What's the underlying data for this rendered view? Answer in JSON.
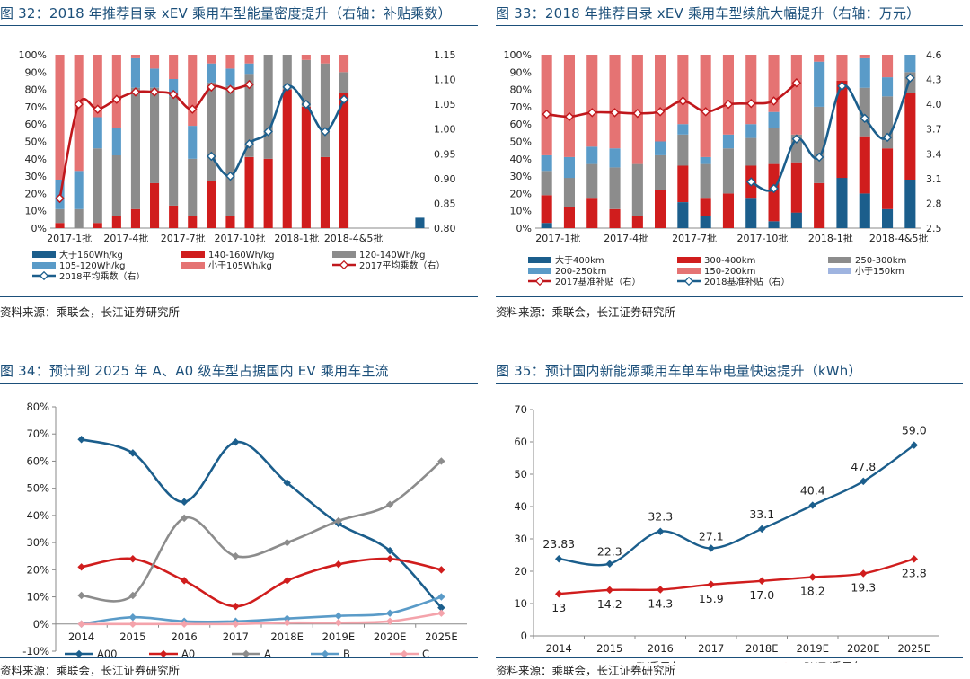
{
  "source": "资料来源：乘联会，长江证券研究所",
  "chart_data": [
    {
      "id": "fig32",
      "type": "bar",
      "title": "图 32：2018 年推荐目录 xEV 乘用车型能量密度提升（右轴：补贴乘数）",
      "xtick_labels": [
        "2017-1批",
        "2017-4批",
        "2017-7批",
        "2017-10批",
        "2018-1批",
        "2018-4&5批"
      ],
      "y_ticks": [
        "0%",
        "10%",
        "20%",
        "30%",
        "40%",
        "50%",
        "60%",
        "70%",
        "80%",
        "90%",
        "100%"
      ],
      "y2_ticks": [
        "0.80",
        "0.85",
        "0.90",
        "0.95",
        "1.00",
        "1.05",
        "1.10",
        "1.15"
      ],
      "ylim": [
        0,
        100
      ],
      "y2lim": [
        0.8,
        1.15
      ],
      "stack_series": [
        {
          "name": "大于160Wh/kg",
          "color": "#1b5e8c",
          "values": [
            0,
            0,
            0,
            0,
            0,
            0,
            0,
            0,
            0,
            0,
            0,
            0,
            0,
            0,
            0,
            0,
            0,
            0,
            0,
            6
          ]
        },
        {
          "name": "140-160Wh/kg",
          "color": "#d01d1d",
          "values": [
            3,
            0,
            3,
            7,
            11,
            26,
            13,
            7,
            27,
            7,
            41,
            40,
            80,
            70,
            41,
            78,
            0,
            0,
            0,
            0
          ]
        },
        {
          "name": "120-140Wh/kg",
          "color": "#8c8c8c",
          "values": [
            8,
            11,
            43,
            35,
            70,
            55,
            63,
            33,
            57,
            75,
            48,
            60,
            20,
            27,
            54,
            12,
            0,
            0,
            0,
            0
          ]
        },
        {
          "name": "105-120Wh/kg",
          "color": "#5a9bc8",
          "values": [
            17,
            22,
            18,
            16,
            17,
            11,
            10,
            19,
            11,
            10,
            6,
            0,
            0,
            0,
            0,
            0,
            0,
            0,
            0,
            0
          ]
        },
        {
          "name": "小于105Wh/kg",
          "color": "#e57373",
          "values": [
            72,
            67,
            36,
            42,
            2,
            8,
            14,
            41,
            5,
            8,
            5,
            0,
            0,
            3,
            5,
            10,
            0,
            0,
            0,
            0
          ]
        }
      ],
      "line_series": [
        {
          "name": "2018平均乘数（右）",
          "color": "#1b5e8c",
          "values": [
            0.86,
            null,
            null,
            null,
            null,
            null,
            null,
            null,
            0.945,
            0.905,
            0.97,
            0.995,
            1.085,
            1.05,
            0.995,
            1.06
          ]
        },
        {
          "name": "2017平均乘数（右）",
          "color": "#c0171c",
          "values": [
            0.86,
            1.05,
            1.04,
            1.06,
            1.075,
            1.075,
            1.07,
            1.04,
            1.085,
            1.08,
            1.09,
            null,
            null,
            null,
            null,
            null
          ]
        }
      ]
    },
    {
      "id": "fig33",
      "type": "bar",
      "title": "图 33：2018 年推荐目录 xEV 乘用车型续航大幅提升（右轴：万元）",
      "xtick_labels": [
        "2017-1批",
        "2017-4批",
        "2017-7批",
        "2017-10批",
        "2018-1批",
        "2018-4&5批"
      ],
      "y_ticks": [
        "0%",
        "10%",
        "20%",
        "30%",
        "40%",
        "50%",
        "60%",
        "70%",
        "80%",
        "90%",
        "100%"
      ],
      "y2_ticks": [
        "2.5",
        "2.8",
        "3.1",
        "3.4",
        "3.7",
        "4.0",
        "4.3",
        "4.6"
      ],
      "ylim": [
        0,
        100
      ],
      "y2lim": [
        2.5,
        4.6
      ],
      "stack_series": [
        {
          "name": "大于400km",
          "color": "#1b5e8c",
          "values": [
            3,
            0,
            0,
            0,
            0,
            0,
            15,
            7,
            0,
            17,
            4,
            9,
            0,
            29,
            20,
            11,
            28
          ]
        },
        {
          "name": "300-400km",
          "color": "#d01d1d",
          "values": [
            16,
            12,
            17,
            11,
            7,
            22,
            21,
            10,
            20,
            19,
            33,
            29,
            26,
            56,
            33,
            35,
            50
          ]
        },
        {
          "name": "250-300km",
          "color": "#8c8c8c",
          "values": [
            14,
            17,
            20,
            24,
            30,
            20,
            18,
            20,
            26,
            16,
            21,
            16,
            44,
            0,
            28,
            30,
            12
          ]
        },
        {
          "name": "200-250km",
          "color": "#5a9bc8",
          "values": [
            9,
            12,
            10,
            11,
            0,
            8,
            6,
            4,
            8,
            8,
            9,
            0,
            26,
            0,
            17,
            11,
            10
          ]
        },
        {
          "name": "150-200km",
          "color": "#e57373",
          "values": [
            58,
            59,
            53,
            54,
            63,
            50,
            40,
            59,
            46,
            40,
            33,
            46,
            4,
            15,
            2,
            13,
            0
          ]
        },
        {
          "name": "小于150km",
          "color": "#9fb4e0",
          "values": [
            0,
            0,
            0,
            0,
            0,
            0,
            0,
            0,
            0,
            0,
            0,
            0,
            0,
            0,
            0,
            0,
            0
          ]
        }
      ],
      "line_series": [
        {
          "name": "2017基准补贴（右）",
          "color": "#c0171c",
          "values": [
            3.88,
            3.85,
            3.9,
            3.9,
            3.89,
            3.91,
            4.04,
            3.91,
            4.0,
            4.01,
            4.04,
            4.26,
            null,
            null,
            null,
            null,
            null
          ]
        },
        {
          "name": "2018基准补贴（右）",
          "color": "#1b5e8c",
          "values": [
            null,
            null,
            null,
            null,
            null,
            null,
            null,
            null,
            null,
            3.06,
            2.98,
            3.58,
            3.36,
            4.22,
            3.83,
            3.6,
            4.32
          ]
        }
      ]
    },
    {
      "id": "fig34",
      "type": "line",
      "title": "图 34：预计到 2025 年 A、A0 级车型占据国内 EV 乘用车主流",
      "categories": [
        "2014",
        "2015",
        "2016",
        "2017",
        "2018E",
        "2019E",
        "2020E",
        "2025E"
      ],
      "y_ticks": [
        "-10%",
        "0%",
        "10%",
        "20%",
        "30%",
        "40%",
        "50%",
        "60%",
        "70%",
        "80%"
      ],
      "ylim": [
        -10,
        80
      ],
      "series": [
        {
          "name": "A00",
          "color": "#1b5e8c",
          "values": [
            68,
            63,
            45,
            67,
            52,
            37,
            27,
            6
          ]
        },
        {
          "name": "A0",
          "color": "#d01d1d",
          "values": [
            21,
            24,
            16,
            6.5,
            16,
            22,
            24,
            20
          ]
        },
        {
          "name": "A",
          "color": "#8c8c8c",
          "values": [
            10.5,
            10.5,
            39,
            25,
            30,
            38,
            44,
            60
          ]
        },
        {
          "name": "B",
          "color": "#5a9bc8",
          "values": [
            0,
            2.5,
            1,
            1,
            2,
            3,
            4,
            10
          ]
        },
        {
          "name": "C",
          "color": "#f4a3ab",
          "values": [
            0,
            0,
            0,
            0,
            0.5,
            0.5,
            1,
            4
          ]
        }
      ]
    },
    {
      "id": "fig35",
      "type": "line",
      "title": "图 35：预计国内新能源乘用车单车带电量快速提升（kWh）",
      "categories": [
        "2014",
        "2015",
        "2016",
        "2017",
        "2018E",
        "2019E",
        "2020E",
        "2025E"
      ],
      "y_ticks": [
        "0",
        "10",
        "20",
        "30",
        "40",
        "50",
        "60",
        "70"
      ],
      "ylim": [
        0,
        70
      ],
      "series": [
        {
          "name": "EV乘用车",
          "color": "#1b5e8c",
          "values": [
            23.83,
            22.3,
            32.3,
            27.1,
            33.1,
            40.4,
            47.8,
            59.0
          ],
          "labels": [
            "23.83",
            "22.3",
            "32.3",
            "27.1",
            "33.1",
            "40.4",
            "47.8",
            "59.0"
          ]
        },
        {
          "name": "PHEV乘用车",
          "color": "#d01d1d",
          "values": [
            13,
            14.2,
            14.3,
            15.9,
            17.0,
            18.2,
            19.3,
            23.8
          ],
          "labels": [
            "13",
            "14.2",
            "14.3",
            "15.9",
            "17.0",
            "18.2",
            "19.3",
            "23.8"
          ]
        }
      ]
    }
  ]
}
